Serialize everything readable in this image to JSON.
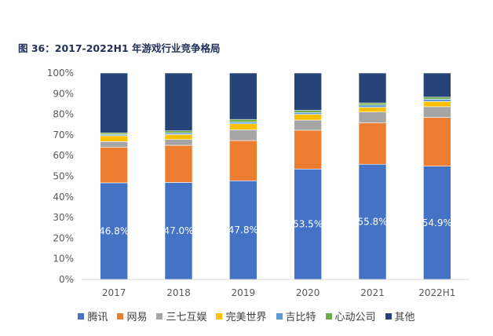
{
  "figure": {
    "title": "图 36：2017-2022H1 年游戏行业竞争格局"
  },
  "chart_data": {
    "type": "bar",
    "stacked": true,
    "percent": true,
    "categories": [
      "2017",
      "2018",
      "2019",
      "2020",
      "2021",
      "2022H1"
    ],
    "ylim": [
      0,
      100
    ],
    "yticks": [
      "0%",
      "10%",
      "20%",
      "30%",
      "40%",
      "50%",
      "60%",
      "70%",
      "80%",
      "90%",
      "100%"
    ],
    "series": [
      {
        "name": "腾讯",
        "color": "#4472c4",
        "values": [
          46.8,
          47.0,
          47.8,
          53.5,
          55.8,
          54.9
        ],
        "labels": [
          "46.8%",
          "47.0%",
          "47.8%",
          "53.5%",
          "55.8%",
          "54.9%"
        ]
      },
      {
        "name": "网易",
        "color": "#ed7d31",
        "values": [
          17.2,
          18.0,
          19.5,
          18.8,
          20.1,
          23.6
        ]
      },
      {
        "name": "三七互娱",
        "color": "#a5a5a5",
        "values": [
          2.8,
          2.8,
          5.2,
          4.9,
          5.2,
          5.2
        ]
      },
      {
        "name": "完美世界",
        "color": "#ffc000",
        "values": [
          2.8,
          2.4,
          2.9,
          2.8,
          2.3,
          2.5
        ]
      },
      {
        "name": "吉比特",
        "color": "#5b9bd5",
        "values": [
          0.6,
          0.8,
          0.9,
          0.9,
          1.1,
          1.1
        ]
      },
      {
        "name": "心动公司",
        "color": "#70ad47",
        "values": [
          0.8,
          1.0,
          1.2,
          1.0,
          1.0,
          1.0
        ]
      },
      {
        "name": "其他",
        "color": "#264478",
        "values": [
          29.0,
          28.0,
          22.5,
          18.1,
          14.5,
          11.7
        ]
      }
    ],
    "legend_position": "bottom",
    "grid": false
  }
}
